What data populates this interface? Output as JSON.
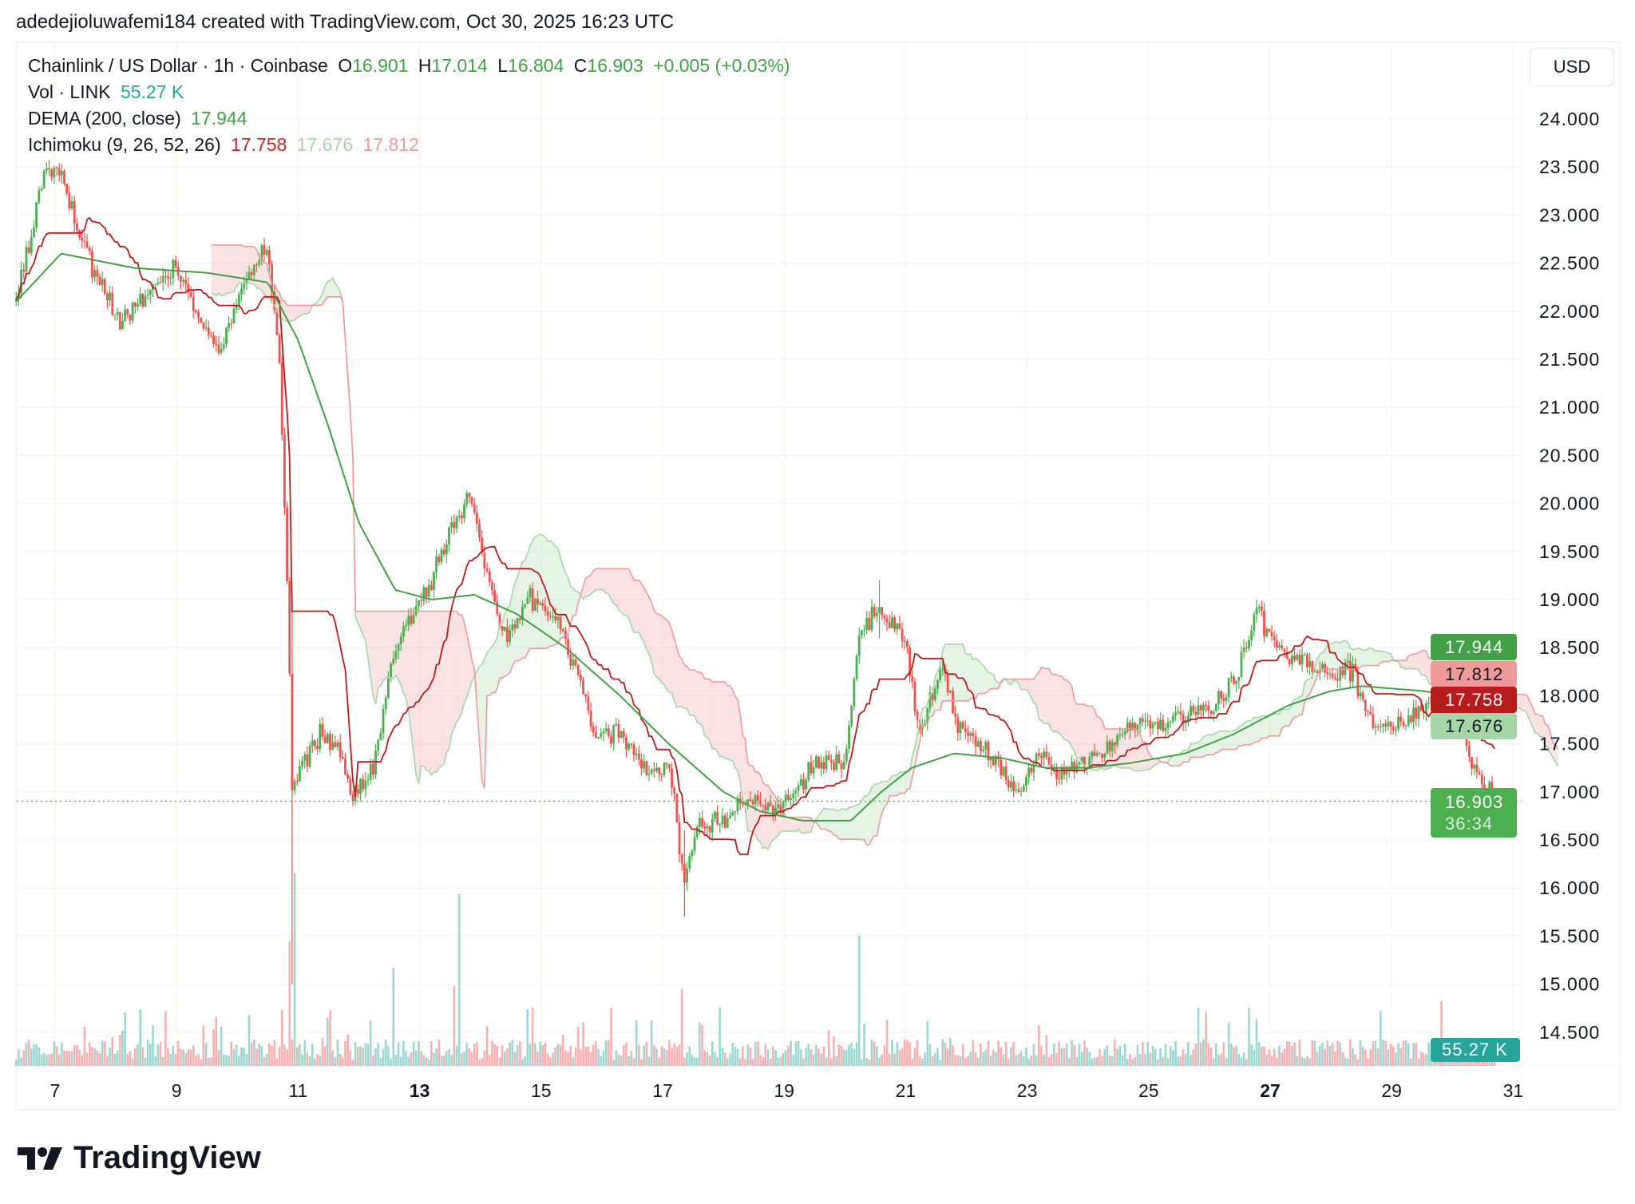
{
  "credit": "adedejioluwafemi184 created with TradingView.com, Oct 30, 2025 16:23 UTC",
  "legend": {
    "symbol": "Chainlink / US Dollar · 1h · Coinbase",
    "o_label": "O",
    "o": "16.901",
    "h_label": "H",
    "h": "17.014",
    "l_label": "L",
    "l": "16.804",
    "c_label": "C",
    "c": "16.903",
    "change": "+0.005 (+0.03%)",
    "vol_label": "Vol · LINK",
    "vol": "55.27 K",
    "dema_label": "DEMA (200, close)",
    "dema": "17.944",
    "ichimoku_label": "Ichimoku (9, 26, 52, 26)",
    "ichi_base": "17.758",
    "ichi_span_a": "17.676",
    "ichi_span_b": "17.812"
  },
  "currency": "USD",
  "badges": {
    "dema": "17.944",
    "span_b": "17.812",
    "base": "17.758",
    "span_a": "17.676",
    "price": "16.903",
    "countdown": "36:34",
    "volume": "55.27 K"
  },
  "brand": "TradingView",
  "colors": {
    "up": "#4caf50",
    "down": "#ef5350",
    "dema": "#43a047",
    "base": "#b71c1c",
    "span_a": "#a5d6a7",
    "span_b": "#ef9a9a",
    "volume": "#26a69a"
  },
  "chart_data": {
    "type": "candlestick",
    "title": "Chainlink / US Dollar · 1h · Coinbase",
    "ylim": [
      14.3,
      24.4
    ],
    "y_ticks": [
      "24.000",
      "23.500",
      "23.000",
      "22.500",
      "22.000",
      "21.500",
      "21.000",
      "20.500",
      "20.000",
      "19.500",
      "19.000",
      "18.500",
      "18.000",
      "17.500",
      "17.000",
      "16.500",
      "16.000",
      "15.500",
      "15.000",
      "14.500"
    ],
    "x_ticks": [
      {
        "day": 7,
        "label": "7"
      },
      {
        "day": 9,
        "label": "9"
      },
      {
        "day": 11,
        "label": "11"
      },
      {
        "day": 13,
        "label": "13",
        "bold": true
      },
      {
        "day": 15,
        "label": "15"
      },
      {
        "day": 17,
        "label": "17"
      },
      {
        "day": 19,
        "label": "19"
      },
      {
        "day": 21,
        "label": "21"
      },
      {
        "day": 23,
        "label": "23"
      },
      {
        "day": 25,
        "label": "25"
      },
      {
        "day": 27,
        "label": "27",
        "bold": true
      },
      {
        "day": 29,
        "label": "29"
      },
      {
        "day": 31,
        "label": "31"
      }
    ],
    "xlim_days": [
      6.3,
      31.1
    ],
    "close_path": [
      [
        6.36,
        22.1
      ],
      [
        6.6,
        22.8
      ],
      [
        6.86,
        23.5
      ],
      [
        7.1,
        23.4
      ],
      [
        7.4,
        22.8
      ],
      [
        7.8,
        22.2
      ],
      [
        8.1,
        21.9
      ],
      [
        8.6,
        22.2
      ],
      [
        9.0,
        22.5
      ],
      [
        9.3,
        22.0
      ],
      [
        9.7,
        21.6
      ],
      [
        10.2,
        22.4
      ],
      [
        10.5,
        22.6
      ],
      [
        10.7,
        21.5
      ],
      [
        10.85,
        18.5
      ],
      [
        10.9,
        17.0
      ],
      [
        11.0,
        17.2
      ],
      [
        11.35,
        17.6
      ],
      [
        11.7,
        17.4
      ],
      [
        11.9,
        16.9
      ],
      [
        12.25,
        17.3
      ],
      [
        12.6,
        18.5
      ],
      [
        12.9,
        18.9
      ],
      [
        13.2,
        19.2
      ],
      [
        13.55,
        19.8
      ],
      [
        13.85,
        20.1
      ],
      [
        14.05,
        19.4
      ],
      [
        14.4,
        18.6
      ],
      [
        14.75,
        19.0
      ],
      [
        15.25,
        18.8
      ],
      [
        15.6,
        18.2
      ],
      [
        15.9,
        17.6
      ],
      [
        16.4,
        17.6
      ],
      [
        16.75,
        17.2
      ],
      [
        17.1,
        17.3
      ],
      [
        17.35,
        16.1
      ],
      [
        17.6,
        16.7
      ],
      [
        17.95,
        16.7
      ],
      [
        18.3,
        16.9
      ],
      [
        18.95,
        16.8
      ],
      [
        19.5,
        17.3
      ],
      [
        20.0,
        17.3
      ],
      [
        20.25,
        18.7
      ],
      [
        20.5,
        18.9
      ],
      [
        21.0,
        18.6
      ],
      [
        21.2,
        17.6
      ],
      [
        21.6,
        18.3
      ],
      [
        21.85,
        17.7
      ],
      [
        22.35,
        17.4
      ],
      [
        22.85,
        17.0
      ],
      [
        23.2,
        17.4
      ],
      [
        23.5,
        17.2
      ],
      [
        24.0,
        17.3
      ],
      [
        24.5,
        17.6
      ],
      [
        25.6,
        17.8
      ],
      [
        26.1,
        17.9
      ],
      [
        26.45,
        18.2
      ],
      [
        26.8,
        18.9
      ],
      [
        27.15,
        18.4
      ],
      [
        27.5,
        18.4
      ],
      [
        28.0,
        18.2
      ],
      [
        28.35,
        18.3
      ],
      [
        28.65,
        17.7
      ],
      [
        29.2,
        17.7
      ],
      [
        29.7,
        18.0
      ],
      [
        30.05,
        17.9
      ],
      [
        30.3,
        17.3
      ],
      [
        30.69,
        16.903
      ]
    ],
    "extreme_wicks": [
      {
        "day": 10.9,
        "low": 15.0,
        "high": 18.9
      },
      {
        "day": 17.35,
        "low": 15.7,
        "high": 16.6
      },
      {
        "day": 20.55,
        "low": 18.6,
        "high": 19.2
      }
    ],
    "dema_path": [
      [
        6.36,
        22.1
      ],
      [
        7.1,
        22.6
      ],
      [
        8.3,
        22.45
      ],
      [
        9.5,
        22.4
      ],
      [
        10.5,
        22.3
      ],
      [
        11.0,
        21.7
      ],
      [
        11.5,
        20.8
      ],
      [
        12.0,
        19.8
      ],
      [
        12.6,
        19.1
      ],
      [
        13.2,
        19.0
      ],
      [
        13.9,
        19.05
      ],
      [
        14.6,
        18.85
      ],
      [
        15.4,
        18.5
      ],
      [
        16.3,
        18.0
      ],
      [
        17.1,
        17.5
      ],
      [
        18.0,
        17.0
      ],
      [
        18.6,
        16.8
      ],
      [
        19.3,
        16.7
      ],
      [
        20.1,
        16.7
      ],
      [
        20.6,
        17.0
      ],
      [
        21.1,
        17.25
      ],
      [
        21.8,
        17.4
      ],
      [
        22.6,
        17.35
      ],
      [
        23.3,
        17.25
      ],
      [
        24.0,
        17.25
      ],
      [
        24.7,
        17.3
      ],
      [
        25.6,
        17.4
      ],
      [
        26.4,
        17.6
      ],
      [
        27.3,
        17.9
      ],
      [
        28.0,
        18.05
      ],
      [
        28.5,
        18.1
      ],
      [
        29.5,
        18.05
      ],
      [
        30.69,
        17.944
      ]
    ],
    "ichimoku": {
      "conversion": 9,
      "base": 26,
      "span_b": 52,
      "displacement": 26
    },
    "volume": {
      "unit": "K",
      "max": 700,
      "last": 55.27,
      "spikes": [
        {
          "day": 10.85,
          "value": 420
        },
        {
          "day": 10.95,
          "value": 650
        },
        {
          "day": 12.55,
          "value": 330
        },
        {
          "day": 13.65,
          "value": 580
        },
        {
          "day": 13.55,
          "value": 270
        },
        {
          "day": 17.3,
          "value": 260
        },
        {
          "day": 20.25,
          "value": 440
        },
        {
          "day": 29.8,
          "value": 220
        }
      ]
    }
  }
}
